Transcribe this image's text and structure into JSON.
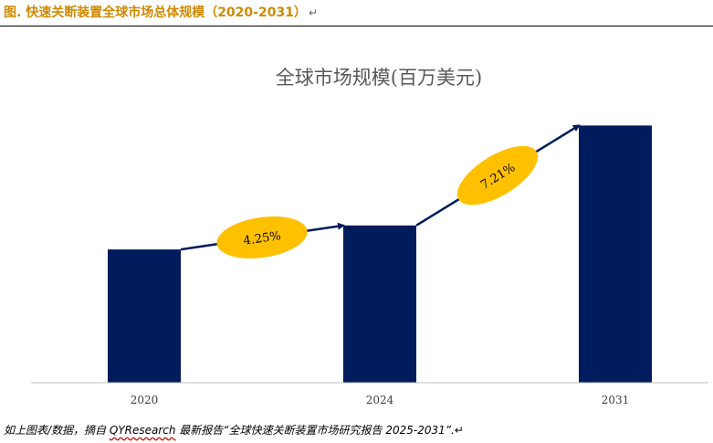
{
  "caption": {
    "label": "图.  快速关断装置全球市场总体规模（2020-2031）",
    "mark": "↵"
  },
  "chart_data": {
    "type": "bar",
    "title": "全球市场规模(百万美元)",
    "categories": [
      "2020",
      "2024",
      "2031"
    ],
    "values": [
      1.0,
      1.18,
      1.93
    ],
    "ylim": [
      0,
      2.2
    ],
    "xlabel": "",
    "ylabel": "",
    "grid": false,
    "bar_color": "#001c5c",
    "annotations": [
      {
        "text": "4.25%",
        "between": [
          "2020",
          "2024"
        ]
      },
      {
        "text": "7.21%",
        "between": [
          "2024",
          "2031"
        ]
      }
    ],
    "annotation_color": "#ffc000",
    "arrow_color": "#001c5c"
  },
  "source": {
    "prefix": "如上图表/数据，摘自 ",
    "brand": "QYResearch",
    "suffix": " 最新报告“全球快速关断装置市场研究报告 2025-2031”.",
    "mark": "↵"
  }
}
